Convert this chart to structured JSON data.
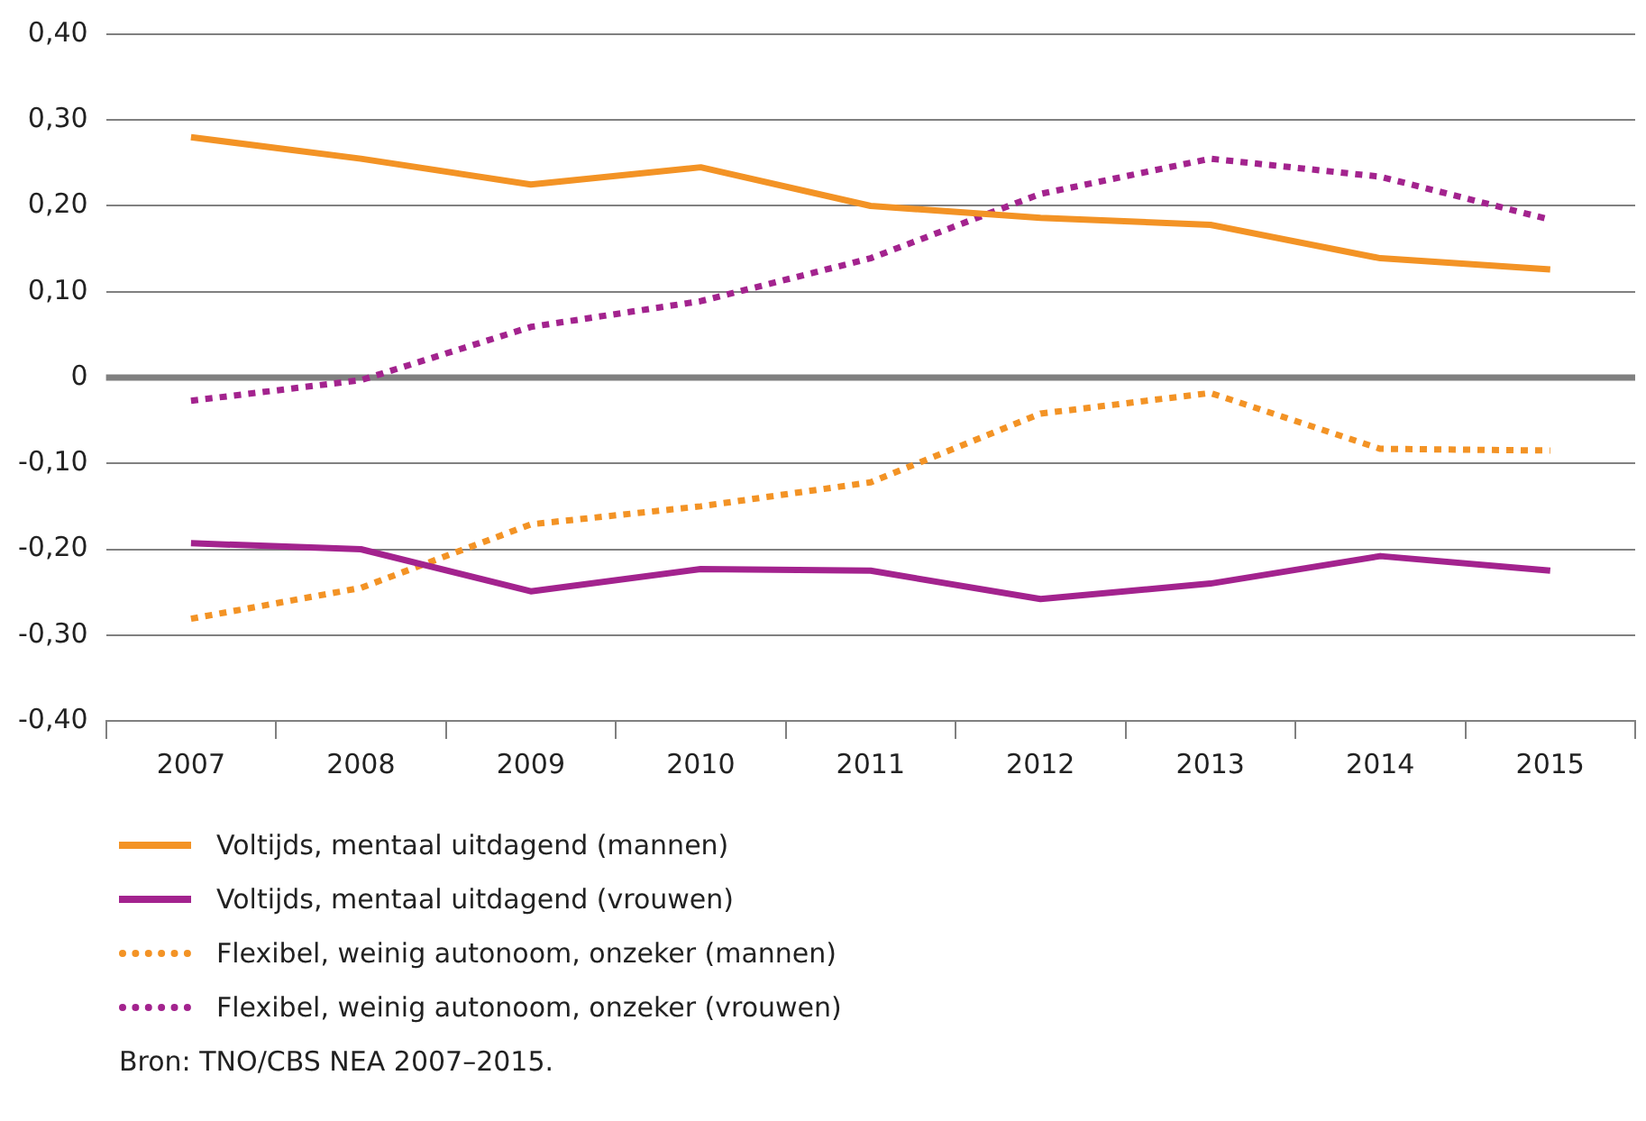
{
  "chart_data": {
    "type": "line",
    "categories": [
      "2007",
      "2008",
      "2009",
      "2010",
      "2011",
      "2012",
      "2013",
      "2014",
      "2015"
    ],
    "series": [
      {
        "name": "Voltijds, mentaal uitdagend (mannen)",
        "color": "#f39325",
        "line_style": "solid",
        "values": [
          0.28,
          0.255,
          0.225,
          0.245,
          0.2,
          0.186,
          0.178,
          0.139,
          0.126
        ]
      },
      {
        "name": "Voltijds, mentaal uitdagend (vrouwen)",
        "color": "#a3238e",
        "line_style": "solid",
        "values": [
          -0.193,
          -0.2,
          -0.249,
          -0.223,
          -0.225,
          -0.258,
          -0.24,
          -0.208,
          -0.225
        ]
      },
      {
        "name": "Flexibel, weinig autonoom, onzeker (mannen)",
        "color": "#f39325",
        "line_style": "dotted",
        "values": [
          -0.281,
          -0.245,
          -0.171,
          -0.15,
          -0.122,
          -0.042,
          -0.018,
          -0.083,
          -0.085
        ]
      },
      {
        "name": "Flexibel, weinig autonoom, onzeker (vrouwen)",
        "color": "#a3238e",
        "line_style": "dotted",
        "values": [
          -0.027,
          -0.003,
          0.059,
          0.089,
          0.139,
          0.214,
          0.255,
          0.234,
          0.184
        ]
      }
    ],
    "ylim": [
      -0.4,
      0.4
    ],
    "yticks": [
      {
        "value": -0.4,
        "label": "-0,40"
      },
      {
        "value": -0.3,
        "label": "-0,30"
      },
      {
        "value": -0.2,
        "label": "-0,20"
      },
      {
        "value": -0.1,
        "label": "-0,10"
      },
      {
        "value": 0,
        "label": "0"
      },
      {
        "value": 0.1,
        "label": "0,10"
      },
      {
        "value": 0.2,
        "label": "0,20"
      },
      {
        "value": 0.3,
        "label": "0,30"
      },
      {
        "value": 0.4,
        "label": "0,40"
      }
    ],
    "grid": "y",
    "marker": "none",
    "legend": "bottom",
    "ref_lines": [
      {
        "axis": "y",
        "value": 0,
        "color": "#808080"
      }
    ],
    "annotations": [
      "Bron: TNO/CBS NEA 2007–2015."
    ]
  }
}
